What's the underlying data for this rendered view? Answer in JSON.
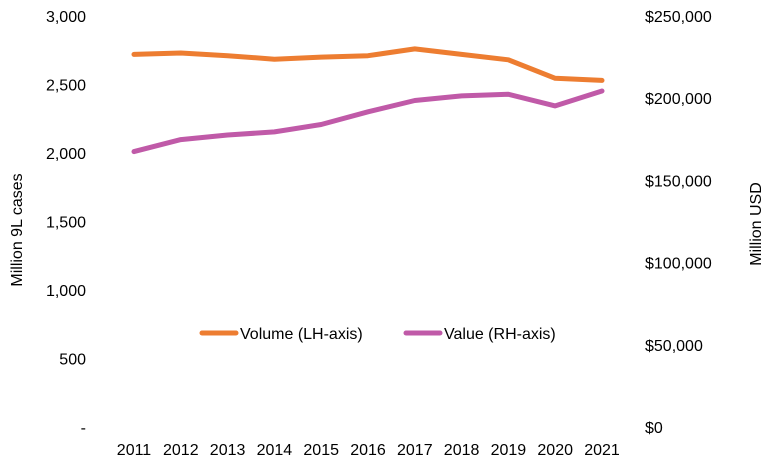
{
  "chart_data": {
    "type": "line",
    "categories": [
      "2011",
      "2012",
      "2013",
      "2014",
      "2015",
      "2016",
      "2017",
      "2018",
      "2019",
      "2020",
      "2021"
    ],
    "series": [
      {
        "name": "Volume (LH-axis)",
        "axis": "left",
        "color": "#ED7D31",
        "values": [
          2720,
          2730,
          2710,
          2685,
          2700,
          2710,
          2760,
          2720,
          2680,
          2545,
          2530
        ]
      },
      {
        "name": "Value (RH-axis)",
        "axis": "right",
        "color": "#C05AA8",
        "values": [
          167500,
          174800,
          177600,
          179500,
          184000,
          191700,
          198600,
          201400,
          202400,
          195300,
          204400
        ]
      }
    ],
    "left_axis": {
      "label": "Million 9L cases",
      "ylim": [
        0,
        3000
      ],
      "ticks": [
        {
          "value": 0,
          "label": "-"
        },
        {
          "value": 500,
          "label": "500"
        },
        {
          "value": 1000,
          "label": "1,000"
        },
        {
          "value": 1500,
          "label": "1,500"
        },
        {
          "value": 2000,
          "label": "2,000"
        },
        {
          "value": 2500,
          "label": "2,500"
        },
        {
          "value": 3000,
          "label": "3,000"
        }
      ]
    },
    "right_axis": {
      "label": "Million USD",
      "ylim": [
        0,
        250000
      ],
      "ticks": [
        {
          "value": 0,
          "label": "$0"
        },
        {
          "value": 50000,
          "label": "$50,000"
        },
        {
          "value": 100000,
          "label": "$100,000"
        },
        {
          "value": 150000,
          "label": "$150,000"
        },
        {
          "value": 200000,
          "label": "$200,000"
        },
        {
          "value": 250000,
          "label": "$250,000"
        }
      ]
    },
    "grid": false,
    "legend_position": "center"
  }
}
